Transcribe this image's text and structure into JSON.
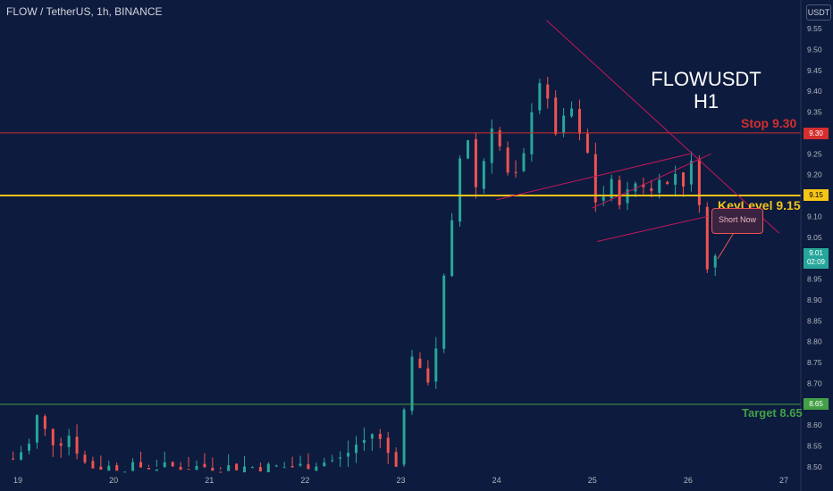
{
  "symbol_line": "FLOW / TetherUS, 1h, BINANCE",
  "currency": "USDT",
  "headline": {
    "line1": "FLOWUSDT",
    "line2": "H1"
  },
  "annotations": {
    "stop": "Stop 9.30",
    "keylevel": "KeyLevel 9.15",
    "target": "Target 8.65",
    "callout": "Short Now"
  },
  "price_tags": {
    "stop": "9.30",
    "keylevel": "9.15",
    "target": "8.65",
    "last_price": "9.01",
    "countdown": "02:09"
  },
  "colors": {
    "background": "#0d1b3e",
    "up": "#26a69a",
    "down": "#ef5350",
    "stop": "#d32f2f",
    "keylevel": "#f5c518",
    "target": "#43a047",
    "trendline": "#c2185b"
  },
  "chart_data": {
    "type": "candlestick",
    "y_range": [
      8.5,
      9.6
    ],
    "y_ticks": [
      "9.55",
      "9.50",
      "9.45",
      "9.40",
      "9.35",
      "9.30",
      "9.25",
      "9.20",
      "9.15",
      "9.10",
      "9.05",
      "9.00",
      "8.95",
      "8.90",
      "8.85",
      "8.80",
      "8.75",
      "8.70",
      "8.65",
      "8.60",
      "8.55",
      "8.50"
    ],
    "x_range": [
      19.0,
      27.0
    ],
    "x_ticks": [
      {
        "label": "19",
        "x": 19.0
      },
      {
        "label": "20",
        "x": 20.0
      },
      {
        "label": "21",
        "x": 21.0
      },
      {
        "label": "22",
        "x": 22.0
      },
      {
        "label": "23",
        "x": 23.0
      },
      {
        "label": "24",
        "x": 24.0
      },
      {
        "label": "25",
        "x": 25.0
      },
      {
        "label": "26",
        "x": 26.0
      },
      {
        "label": "27",
        "x": 27.0
      }
    ],
    "levels": {
      "stop": 9.3,
      "keylevel": 9.15,
      "target": 8.65
    },
    "price_path": [
      [
        18.95,
        8.52
      ],
      [
        19.1,
        8.55
      ],
      [
        19.15,
        8.56
      ],
      [
        19.2,
        8.62
      ],
      [
        19.3,
        8.58
      ],
      [
        19.4,
        8.55
      ],
      [
        19.55,
        8.58
      ],
      [
        19.65,
        8.52
      ],
      [
        19.75,
        8.5
      ],
      [
        21.9,
        8.5
      ],
      [
        22.4,
        8.52
      ],
      [
        22.5,
        8.55
      ],
      [
        22.6,
        8.56
      ],
      [
        22.7,
        8.58
      ],
      [
        22.8,
        8.56
      ],
      [
        22.9,
        8.52
      ],
      [
        23.02,
        8.5
      ],
      [
        23.05,
        8.8
      ],
      [
        23.1,
        8.78
      ],
      [
        23.18,
        8.74
      ],
      [
        23.25,
        8.69
      ],
      [
        23.3,
        8.72
      ],
      [
        23.35,
        8.76
      ],
      [
        23.42,
        8.88
      ],
      [
        23.48,
        9.02
      ],
      [
        23.52,
        9.07
      ],
      [
        23.58,
        9.12
      ],
      [
        23.62,
        9.25
      ],
      [
        23.68,
        9.33
      ],
      [
        23.74,
        9.2
      ],
      [
        23.8,
        9.16
      ],
      [
        23.88,
        9.25
      ],
      [
        23.95,
        9.32
      ],
      [
        24.02,
        9.28
      ],
      [
        24.08,
        9.22
      ],
      [
        24.15,
        9.18
      ],
      [
        24.22,
        9.2
      ],
      [
        24.28,
        9.24
      ],
      [
        24.33,
        9.3
      ],
      [
        24.38,
        9.38
      ],
      [
        24.42,
        9.44
      ],
      [
        24.48,
        9.41
      ],
      [
        24.55,
        9.36
      ],
      [
        24.62,
        9.3
      ],
      [
        24.7,
        9.33
      ],
      [
        24.78,
        9.36
      ],
      [
        24.85,
        9.3
      ],
      [
        24.9,
        9.27
      ],
      [
        24.95,
        9.25
      ],
      [
        25.0,
        9.17
      ],
      [
        25.05,
        9.12
      ],
      [
        25.12,
        9.15
      ],
      [
        25.2,
        9.18
      ],
      [
        25.3,
        9.13
      ],
      [
        25.4,
        9.17
      ],
      [
        25.5,
        9.19
      ],
      [
        25.6,
        9.15
      ],
      [
        25.7,
        9.2
      ],
      [
        25.8,
        9.17
      ],
      [
        25.88,
        9.21
      ],
      [
        25.95,
        9.18
      ],
      [
        26.02,
        9.22
      ],
      [
        26.08,
        9.24
      ],
      [
        26.12,
        9.13
      ],
      [
        26.16,
        9.04
      ],
      [
        26.2,
        8.97
      ],
      [
        26.25,
        8.99
      ],
      [
        26.3,
        9.01
      ]
    ],
    "trendlines": [
      {
        "name": "descending-trendline",
        "points": [
          [
            24.52,
            9.57
          ],
          [
            26.95,
            9.06
          ]
        ]
      },
      {
        "name": "upper-channel-line",
        "points": [
          [
            25.0,
            9.12
          ],
          [
            26.24,
            9.25
          ]
        ]
      },
      {
        "name": "lower-channel-line",
        "points": [
          [
            25.05,
            9.04
          ],
          [
            26.2,
            9.1
          ]
        ]
      },
      {
        "name": "key-wedge-line",
        "points": [
          [
            24.0,
            9.14
          ],
          [
            26.02,
            9.25
          ]
        ]
      }
    ]
  }
}
